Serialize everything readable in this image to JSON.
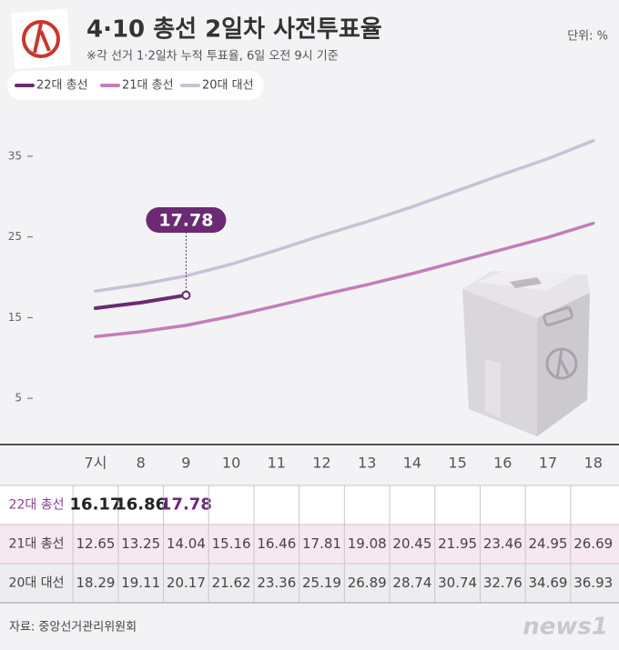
{
  "chart_data": {
    "type": "line",
    "title": "4·10 총선 2일차 사전투표율",
    "subtitle": "※각 선거 1·2일차 누적 투표율, 6일 오전 9시 기준",
    "unit": "단위: %",
    "source": "자료: 중앙선거관리위원회",
    "logo": "news1",
    "categories": [
      "7시",
      "8",
      "9",
      "10",
      "11",
      "12",
      "13",
      "14",
      "15",
      "16",
      "17",
      "18"
    ],
    "series": [
      {
        "name": "22대 총선",
        "color": "#6b2a73",
        "values": [
          16.17,
          16.86,
          17.78,
          null,
          null,
          null,
          null,
          null,
          null,
          null,
          null,
          null
        ]
      },
      {
        "name": "21대 총선",
        "color": "#c47db9",
        "values": [
          12.65,
          13.25,
          14.04,
          15.16,
          16.46,
          17.81,
          19.08,
          20.45,
          21.95,
          23.46,
          24.95,
          26.69
        ]
      },
      {
        "name": "20대 대선",
        "color": "#c9c1d7",
        "values": [
          18.29,
          19.11,
          20.17,
          21.62,
          23.36,
          25.19,
          26.89,
          28.74,
          30.74,
          32.76,
          34.69,
          36.93
        ]
      }
    ],
    "ylim": [
      0,
      40
    ],
    "yticks": [
      5,
      15,
      25,
      35
    ]
  }
}
